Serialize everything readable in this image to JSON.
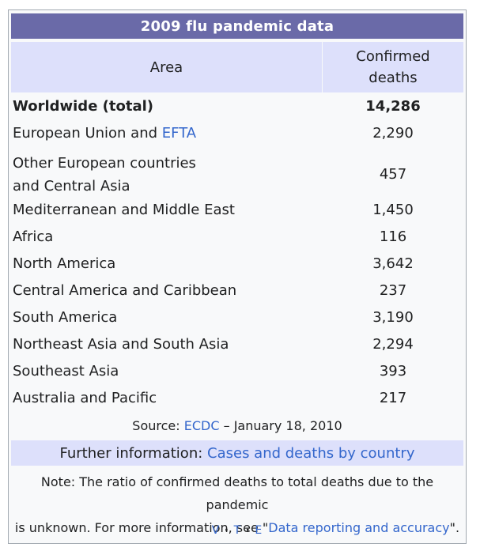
{
  "title": "2009 flu pandemic data",
  "headers": {
    "area": "Area",
    "deaths_line1": "Confirmed",
    "deaths_line2": "deaths"
  },
  "rows": [
    {
      "area": "Worldwide (total)",
      "deaths": "14,286",
      "bold": true
    },
    {
      "area": "European Union and ",
      "area_link": "EFTA",
      "deaths": "2,290"
    },
    {
      "area_line1": "Other European countries",
      "area_line2": "and Central Asia",
      "deaths": "457"
    },
    {
      "area": "Mediterranean and Middle East",
      "deaths": "1,450"
    },
    {
      "area": "Africa",
      "deaths": "116"
    },
    {
      "area": "North America",
      "deaths": "3,642"
    },
    {
      "area": "Central America and Caribbean",
      "deaths": "237"
    },
    {
      "area": "South America",
      "deaths": "3,190"
    },
    {
      "area": "Northeast Asia and South Asia",
      "deaths": "2,294"
    },
    {
      "area": "Southeast Asia",
      "deaths": "393"
    },
    {
      "area": "Australia and Pacific",
      "deaths": "217"
    }
  ],
  "source": {
    "prefix": "Source: ",
    "link": "ECDC",
    "suffix": " – January 18, 2010"
  },
  "further": {
    "prefix": "Further information: ",
    "link": "Cases and deaths by country"
  },
  "note": {
    "line1": "Note: The ratio of confirmed deaths to total deaths due to the pandemic",
    "line2_prefix": "is unknown. For more information, see \"",
    "link": "Data reporting and accuracy",
    "line2_suffix": "\"."
  },
  "vte": {
    "v": "V",
    "t": "T",
    "e": "E",
    "sep": "·"
  }
}
